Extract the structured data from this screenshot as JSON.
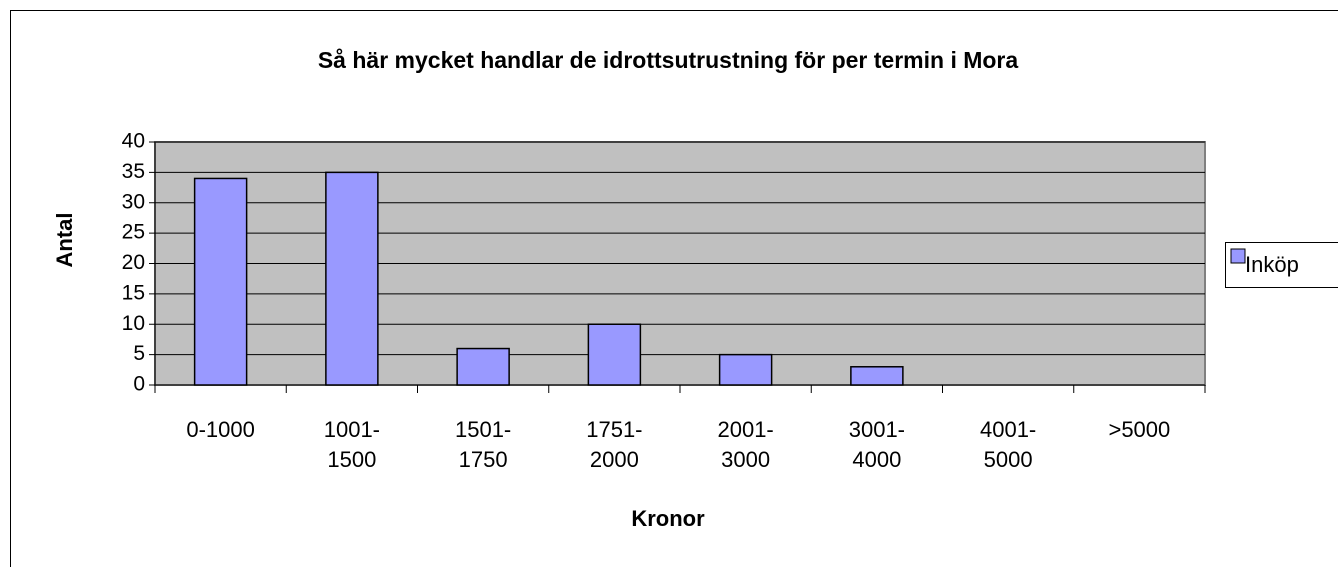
{
  "chart_data": {
    "type": "bar",
    "title": "Så här mycket handlar de idrottsutrustning för per termin i Mora",
    "x_label": "Kronor",
    "y_label": "Antal",
    "categories": [
      "0-1000",
      "1001- 1500",
      "1501- 1750",
      "1751- 2000",
      "2001- 3000",
      "3001- 4000",
      "4001- 5000",
      ">5000"
    ],
    "series": [
      {
        "name": "Inköp",
        "color": "#9999ff",
        "values": [
          34,
          35,
          6,
          10,
          5,
          3,
          0,
          0
        ]
      }
    ],
    "ylim": [
      0,
      40
    ],
    "yticks": [
      0,
      5,
      10,
      15,
      20,
      25,
      30,
      35,
      40
    ],
    "grid": true,
    "legend": "right"
  }
}
